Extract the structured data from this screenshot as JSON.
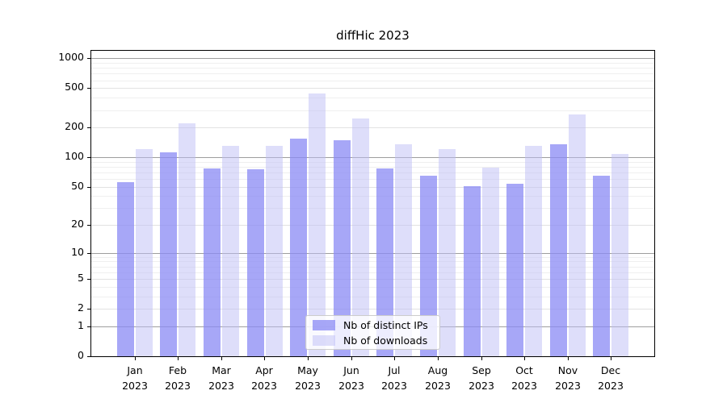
{
  "page": {
    "background": "#ffffff"
  },
  "chart_data": {
    "type": "bar",
    "title": "diffHic 2023",
    "categories": [
      "Jan",
      "Feb",
      "Mar",
      "Apr",
      "May",
      "Jun",
      "Jul",
      "Aug",
      "Sep",
      "Oct",
      "Nov",
      "Dec"
    ],
    "x_tick_label_line2": "2023",
    "series": [
      {
        "name": "Nb of distinct IPs",
        "color": "#8989f4",
        "alpha": 0.75,
        "values": [
          56,
          113,
          77,
          76,
          155,
          150,
          77,
          65,
          51,
          54,
          135,
          65
        ]
      },
      {
        "name": "Nb of downloads",
        "color": "#bebef5",
        "alpha": 0.5,
        "values": [
          120,
          222,
          130,
          130,
          440,
          245,
          136,
          122,
          78,
          130,
          270,
          108
        ]
      }
    ],
    "y_axis": {
      "scale": "log10(y+1)",
      "ticks": [
        0,
        1,
        2,
        5,
        10,
        20,
        50,
        100,
        200,
        500,
        1000
      ],
      "minor_ticks": [
        3,
        4,
        6,
        7,
        8,
        9,
        30,
        40,
        60,
        70,
        80,
        90,
        300,
        400,
        600,
        700,
        800,
        900
      ],
      "ylim": [
        0,
        1236
      ]
    },
    "grid": {
      "show": true,
      "decade_line_color": "#9e9e9e",
      "tick_line_color": "#e2e2e2",
      "minor_line_color": "#efefef"
    },
    "frame_color": "#000000",
    "legend": {
      "position": "lower-center"
    }
  }
}
